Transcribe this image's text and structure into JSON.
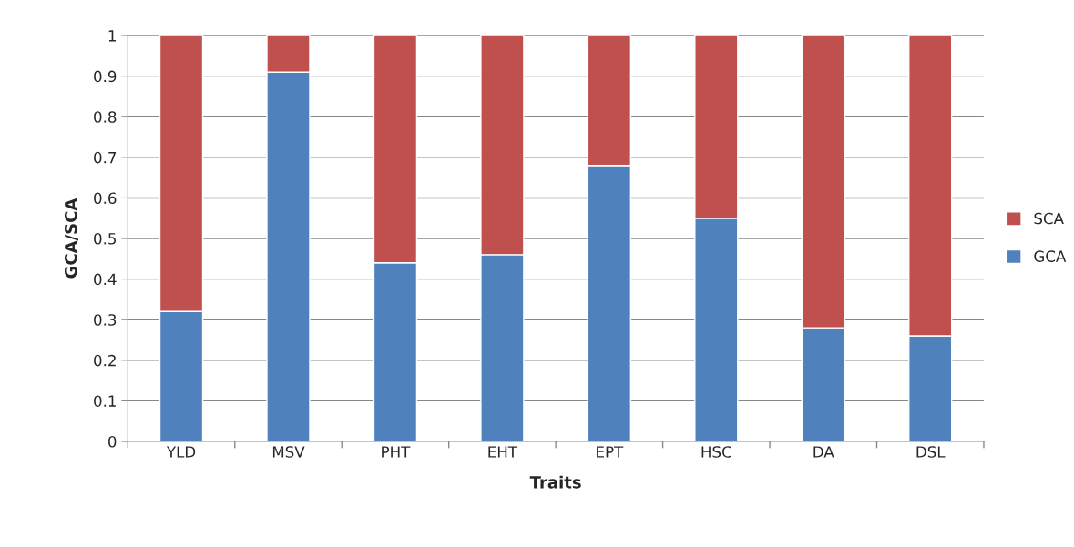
{
  "chart_data": {
    "type": "bar",
    "stacked": true,
    "xlabel": "Traits",
    "ylabel": "GCA/SCA",
    "categories": [
      "YLD",
      "MSV",
      "PHT",
      "EHT",
      "EPT",
      "HSC",
      "DA",
      "DSL"
    ],
    "series": [
      {
        "name": "GCA",
        "color": "#4f81bd",
        "values": [
          0.32,
          0.91,
          0.44,
          0.46,
          0.68,
          0.55,
          0.28,
          0.26
        ]
      },
      {
        "name": "SCA",
        "color": "#c0504d",
        "values": [
          0.68,
          0.09,
          0.56,
          0.54,
          0.32,
          0.45,
          0.72,
          0.74
        ]
      }
    ],
    "ylim": [
      0,
      1
    ],
    "yticks": [
      0,
      0.1,
      0.2,
      0.3,
      0.4,
      0.5,
      0.6,
      0.7,
      0.8,
      0.9,
      1
    ],
    "grid": "y",
    "legend": "right"
  }
}
